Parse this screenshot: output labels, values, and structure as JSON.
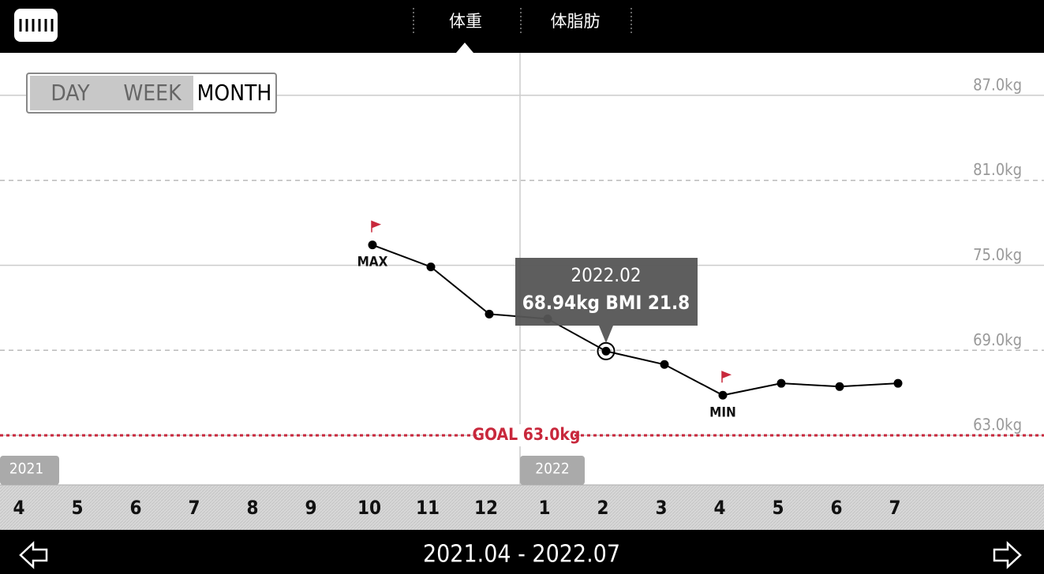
{
  "header": {
    "tabs": [
      "体重",
      "体脂肪"
    ]
  },
  "period_buttons": [
    "DAY",
    "WEEK",
    "MONTH"
  ],
  "chart_data": {
    "type": "line",
    "categories": [
      "4",
      "5",
      "6",
      "7",
      "8",
      "9",
      "10",
      "11",
      "12",
      "1",
      "2",
      "3",
      "4",
      "5",
      "6",
      "7"
    ],
    "values": [
      null,
      null,
      null,
      null,
      null,
      null,
      76.44,
      74.89,
      71.56,
      71.22,
      68.94,
      68.0,
      65.83,
      66.67,
      66.44,
      66.67
    ],
    "color": "#000000",
    "ylim": [
      59.5,
      90
    ],
    "yticks": [
      {
        "value": 87,
        "label": "87.0kg"
      },
      {
        "value": 81,
        "label": "81.0kg"
      },
      {
        "value": 75,
        "label": "75.0kg"
      },
      {
        "value": 69,
        "label": "69.0kg"
      },
      {
        "value": 63,
        "label": "63.0kg"
      }
    ],
    "grid": true,
    "max_label": "MAX",
    "min_label": "MIN",
    "goal": {
      "value": 63,
      "label": "GOAL 63.0kg",
      "color": "#c8283c"
    },
    "tooltip": {
      "title": "2022.02",
      "text": "68.94kg  BMI 21.8"
    },
    "year_labels": [
      "2021",
      "2022"
    ]
  },
  "footer": {
    "range": "2021.04 - 2022.07"
  }
}
